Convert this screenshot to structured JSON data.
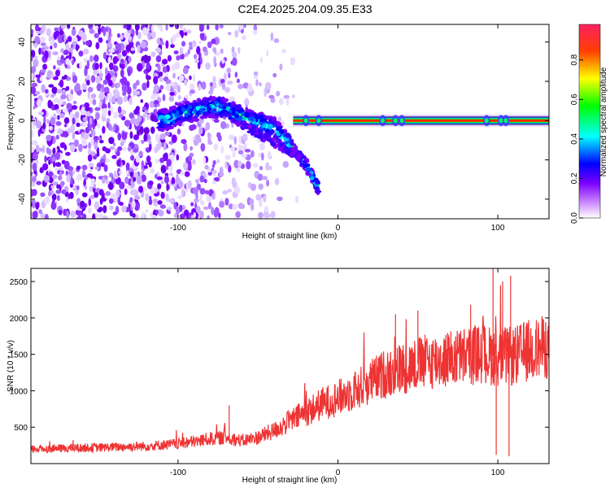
{
  "title": "C2E4.2025.204.09.35.E33",
  "chart_data": [
    {
      "type": "heatmap",
      "xlabel": "Height of straight line (km)",
      "ylabel": "Frequency (Hz)",
      "xlim": [
        -192,
        132
      ],
      "ylim": [
        -50,
        49
      ],
      "x_ticks": [
        -100,
        0,
        100
      ],
      "y_ticks": [
        -40,
        -20,
        0,
        20,
        40
      ],
      "grid": false,
      "noise_region": {
        "x": [
          -192,
          -25
        ],
        "y": [
          -50,
          49
        ],
        "fading_from": -110
      },
      "arc_points": [
        [
          -112,
          0
        ],
        [
          -105,
          1
        ],
        [
          -100,
          3
        ],
        [
          -95,
          4
        ],
        [
          -90,
          5
        ],
        [
          -85,
          6
        ],
        [
          -80,
          7
        ],
        [
          -75,
          7
        ],
        [
          -70,
          6
        ],
        [
          -65,
          4
        ],
        [
          -60,
          2
        ],
        [
          -55,
          0
        ],
        [
          -50,
          -1
        ],
        [
          -45,
          -2
        ],
        [
          -40,
          -4
        ],
        [
          -35,
          -8
        ],
        [
          -30,
          -12
        ],
        [
          -25,
          -18
        ],
        [
          -20,
          -22
        ],
        [
          -12,
          -35
        ]
      ],
      "main_line": {
        "frequency": 0,
        "x_start": -28,
        "x_end": 132
      },
      "colorbar": {
        "label": "Normalized spectral amplitude",
        "range": [
          0,
          0.98
        ],
        "ticks": [
          0.0,
          0.2,
          0.4,
          0.6,
          0.8
        ],
        "colors": [
          "#ffffff",
          "#7a00ff",
          "#0000ff",
          "#00ffff",
          "#00ff00",
          "#ffff00",
          "#ff0000",
          "#ff2060"
        ]
      }
    },
    {
      "type": "line",
      "xlabel": "Height of straight line (km)",
      "ylabel": "SNR (10 * v/v)",
      "xlim": [
        -192,
        132
      ],
      "ylim": [
        0,
        2680
      ],
      "x_ticks": [
        -100,
        0,
        100
      ],
      "y_ticks": [
        500,
        1000,
        1500,
        2000,
        2500
      ],
      "grid": false,
      "series": [
        {
          "color": "#ee3333",
          "envelope": [
            [
              -192,
              200
            ],
            [
              -150,
              220
            ],
            [
              -120,
              240
            ],
            [
              -100,
              270
            ],
            [
              -90,
              300
            ],
            [
              -80,
              340
            ],
            [
              -70,
              360
            ],
            [
              -60,
              310
            ],
            [
              -50,
              360
            ],
            [
              -40,
              450
            ],
            [
              -30,
              580
            ],
            [
              -20,
              700
            ],
            [
              -10,
              820
            ],
            [
              0,
              900
            ],
            [
              10,
              1000
            ],
            [
              20,
              1120
            ],
            [
              30,
              1240
            ],
            [
              40,
              1310
            ],
            [
              50,
              1370
            ],
            [
              60,
              1410
            ],
            [
              70,
              1440
            ],
            [
              80,
              1480
            ],
            [
              90,
              1500
            ],
            [
              100,
              1470
            ],
            [
              110,
              1470
            ],
            [
              120,
              1560
            ],
            [
              132,
              1600
            ]
          ],
          "spikes": [
            [
              97,
              2680
            ],
            [
              103,
              2500
            ],
            [
              108,
              2580
            ],
            [
              99,
              120
            ],
            [
              107,
              100
            ],
            [
              83,
              2180
            ],
            [
              50,
              2100
            ],
            [
              36,
              2050
            ],
            [
              -68,
              800
            ]
          ]
        }
      ]
    }
  ]
}
